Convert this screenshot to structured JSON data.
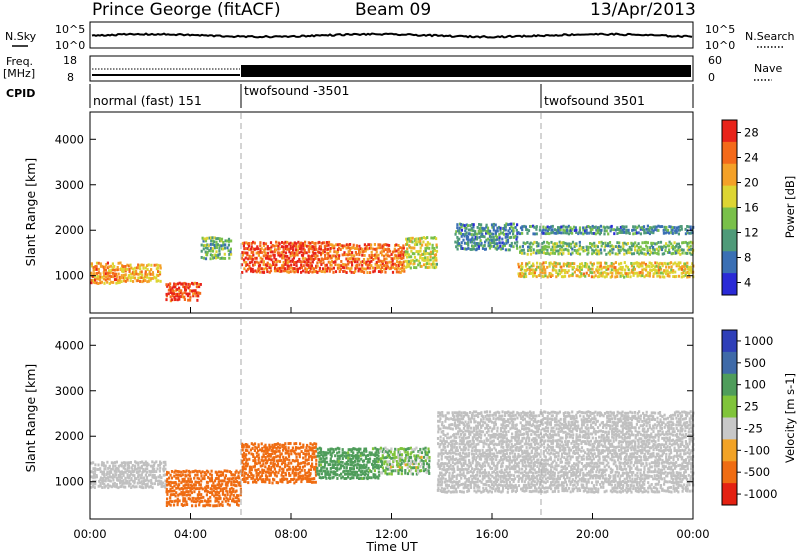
{
  "header": {
    "station": "Prince George (fitACF)",
    "beam": "Beam 09",
    "date": "13/Apr/2013"
  },
  "noise_panel": {
    "left_label": "N.Sky",
    "left_ticks": [
      "10^5",
      "10^0"
    ],
    "right_label": "N.Search",
    "right_ticks": [
      "10^5",
      "10^0"
    ]
  },
  "freq_panel": {
    "left_label_1": "Freq.",
    "left_label_2": "[MHz]",
    "left_ticks": [
      "18",
      "8"
    ],
    "right_label": "Nave",
    "right_ticks": [
      "60",
      "0"
    ]
  },
  "cpid": {
    "label": "CPID",
    "segments": [
      {
        "name": "normal (fast) 151",
        "start_hour": 0
      },
      {
        "name": "twofsound -3501",
        "start_hour": 6
      },
      {
        "name": "twofsound 3501",
        "start_hour": 18
      }
    ]
  },
  "colors": {
    "power_scale": [
      "#2a2ad6",
      "#3a6fb4",
      "#4f9a79",
      "#79c04a",
      "#ddd533",
      "#f4a128",
      "#f46a1a",
      "#e8231a"
    ],
    "velocity_scale": [
      "#2f3fb8",
      "#3f6aa8",
      "#4f9d5b",
      "#80c43a",
      "#c8c8c8",
      "#f2a326",
      "#ef6c12",
      "#e42112"
    ],
    "grey_scatter": "#c0c0c0"
  },
  "chart_data": [
    {
      "type": "heatmap",
      "panel": "power",
      "ylabel": "Slant Range [km]",
      "yticks": [
        "4000",
        "3000",
        "2000",
        "1000"
      ],
      "ylim": [
        180,
        4600
      ],
      "xlim_hours": [
        0,
        24
      ],
      "grid": "dashed vertical lines at 06:00 and 18:00",
      "colorbar": {
        "label": "Power [dB]",
        "ticks": [
          "28",
          "24",
          "20",
          "16",
          "12",
          "8",
          "4"
        ],
        "range": [
          0,
          30
        ]
      },
      "bands": [
        {
          "t0": 0.0,
          "t1": 1.2,
          "r0": 850,
          "r1": 1350,
          "value": 22
        },
        {
          "t0": 1.2,
          "t1": 2.8,
          "r0": 900,
          "r1": 1300,
          "value": 20
        },
        {
          "t0": 3.0,
          "t1": 4.4,
          "r0": 480,
          "r1": 900,
          "value": 27
        },
        {
          "t0": 4.4,
          "t1": 5.6,
          "r0": 1400,
          "r1": 1900,
          "value": 12
        },
        {
          "t0": 6.0,
          "t1": 9.5,
          "r0": 1100,
          "r1": 1800,
          "value": 26
        },
        {
          "t0": 9.5,
          "t1": 12.5,
          "r0": 1100,
          "r1": 1750,
          "value": 24
        },
        {
          "t0": 12.5,
          "t1": 13.8,
          "r0": 1200,
          "r1": 1900,
          "value": 16
        },
        {
          "t0": 14.5,
          "t1": 17.0,
          "r0": 1600,
          "r1": 2200,
          "value": 8
        },
        {
          "t0": 17.0,
          "t1": 24.0,
          "r0": 1000,
          "r1": 1350,
          "value": 18
        },
        {
          "t0": 17.0,
          "t1": 24.0,
          "r0": 1500,
          "r1": 1800,
          "value": 12
        },
        {
          "t0": 17.0,
          "t1": 24.0,
          "r0": 1950,
          "r1": 2150,
          "value": 8
        }
      ]
    },
    {
      "type": "heatmap",
      "panel": "velocity",
      "ylabel": "Slant Range [km]",
      "yticks": [
        "4000",
        "3000",
        "2000",
        "1000"
      ],
      "ylim": [
        180,
        4600
      ],
      "xlim_hours": [
        0,
        24
      ],
      "xlabel": "Time UT",
      "xticks": [
        "00:00",
        "04:00",
        "08:00",
        "12:00",
        "16:00",
        "20:00",
        "00:00"
      ],
      "colorbar": {
        "label": "Velocity [m s-1]",
        "ticks": [
          "1000",
          "500",
          "100",
          "25",
          "-25",
          "-100",
          "-500",
          "-1000"
        ],
        "range": [
          -1200,
          1200
        ]
      },
      "bands": [
        {
          "t0": 0.0,
          "t1": 3.0,
          "r0": 900,
          "r1": 1500,
          "value": 0,
          "style": "grey"
        },
        {
          "t0": 3.0,
          "t1": 6.0,
          "r0": 500,
          "r1": 1300,
          "value": -300
        },
        {
          "t0": 6.0,
          "t1": 9.0,
          "r0": 1000,
          "r1": 1900,
          "value": -250
        },
        {
          "t0": 9.0,
          "t1": 11.5,
          "r0": 1100,
          "r1": 1800,
          "value": 200
        },
        {
          "t0": 11.5,
          "t1": 13.5,
          "r0": 1200,
          "r1": 1800,
          "value": 80
        },
        {
          "t0": 13.8,
          "t1": 24.0,
          "r0": 800,
          "r1": 2600,
          "value": 0,
          "style": "grey"
        }
      ]
    }
  ]
}
